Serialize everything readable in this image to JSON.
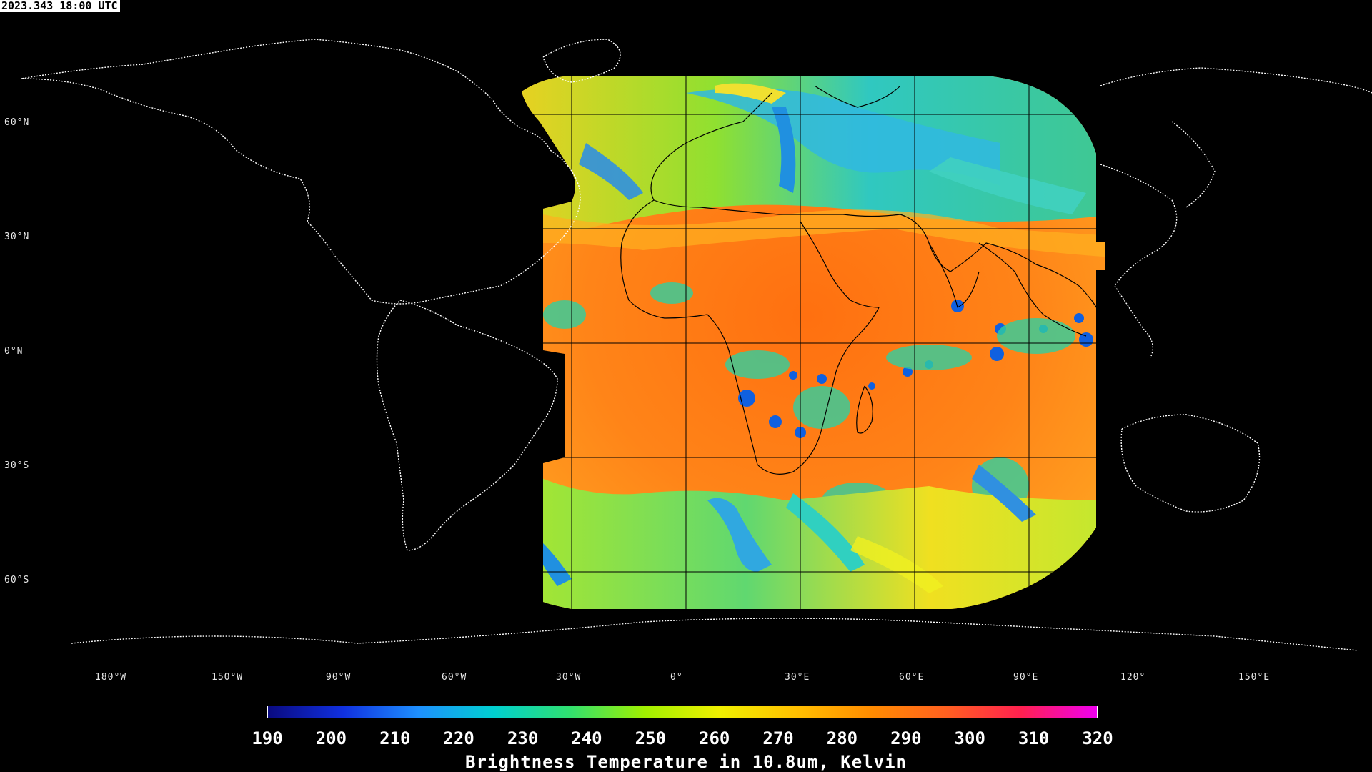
{
  "timestamp": "2023.343 18:00 UTC",
  "lat_labels": [
    "60°N",
    "30°N",
    "0°N",
    "30°S",
    "60°S"
  ],
  "lon_labels": [
    "180°W",
    "150°W",
    "90°W",
    "60°W",
    "30°W",
    "0°",
    "30°E",
    "60°E",
    "90°E",
    "120°",
    "150°E"
  ],
  "colorbar": {
    "min": 190,
    "max": 320,
    "tick_labels": [
      "190",
      "200",
      "210",
      "220",
      "230",
      "240",
      "250",
      "260",
      "270",
      "280",
      "290",
      "300",
      "310",
      "320"
    ],
    "colors": [
      "#0a0a80",
      "#1030e0",
      "#1e90ff",
      "#00d0d0",
      "#30e070",
      "#a0f000",
      "#f0f000",
      "#ffc000",
      "#ff8c00",
      "#ff6020",
      "#ff2050",
      "#f000f0"
    ],
    "title": "Brightness Temperature in 10.8um, Kelvin"
  },
  "colors": {
    "background": "#000000",
    "coastline": "#ffffff",
    "grid": "#000000",
    "warm": "#ff7a10",
    "mid": "#f0e020",
    "cool": "#30d0a0",
    "cold": "#1060e0"
  }
}
